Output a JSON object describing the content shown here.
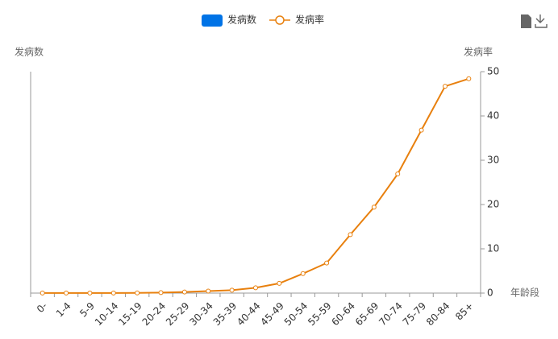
{
  "chart_data": {
    "type": "bar-line",
    "x_label": "年龄段",
    "y_label": "发病数",
    "y2_label": "发病率",
    "categories": [
      "0-",
      "1-4",
      "5-9",
      "10-14",
      "15-19",
      "20-24",
      "25-29",
      "30-34",
      "35-39",
      "40-44",
      "45-49",
      "50-54",
      "55-59",
      "60-64",
      "65-69",
      "70-74",
      "75-79",
      "80-84",
      "85+"
    ],
    "series": [
      {
        "name": "发病数",
        "type": "bar",
        "color": "#0073e6",
        "values": [
          null,
          null,
          null,
          null,
          null,
          null,
          null,
          null,
          null,
          null,
          null,
          null,
          null,
          null,
          null,
          null,
          null,
          null,
          null
        ]
      },
      {
        "name": "发病率",
        "type": "line",
        "axis": "y2",
        "color": "#e8800e",
        "values": [
          0.03,
          0.02,
          0.02,
          0.03,
          0.05,
          0.12,
          0.25,
          0.45,
          0.65,
          1.2,
          2.2,
          4.4,
          6.8,
          13.2,
          19.4,
          26.9,
          36.8,
          46.7,
          48.4
        ]
      }
    ],
    "y2lim": [
      0,
      50
    ],
    "y2ticks": [
      0,
      10,
      20,
      30,
      40,
      50
    ],
    "grid": false
  }
}
